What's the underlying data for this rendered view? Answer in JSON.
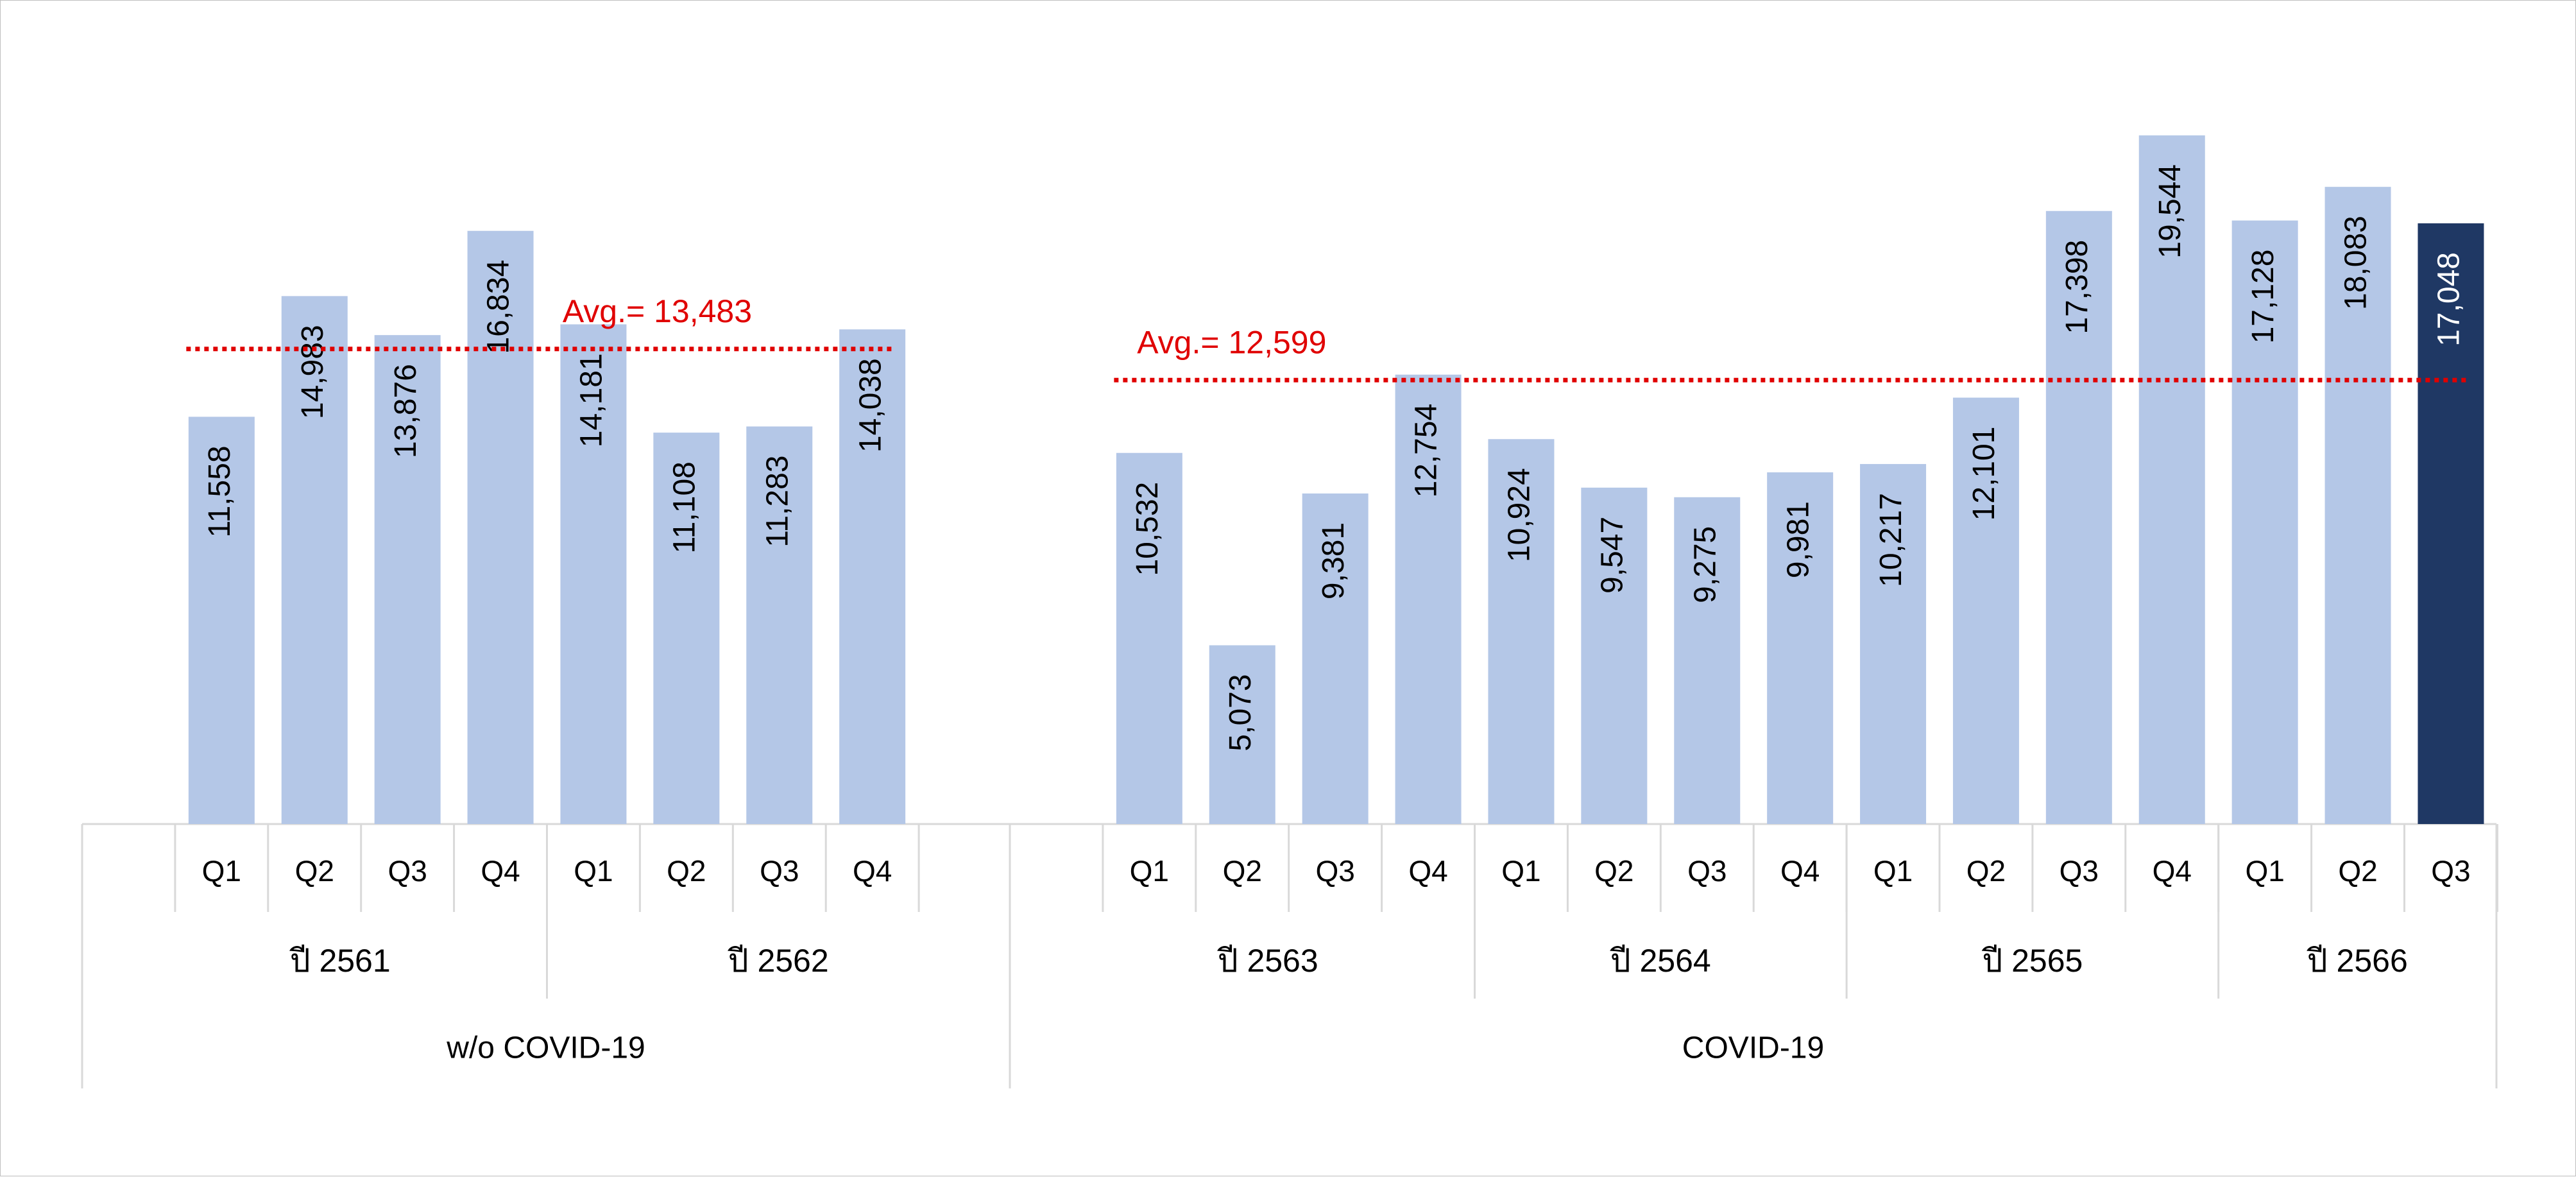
{
  "chart_data": {
    "type": "bar",
    "title": "",
    "xlabel": "",
    "ylabel": "",
    "ylim": [
      0,
      21000
    ],
    "grid": false,
    "legend": "none",
    "colors": {
      "bar": "#b4c7e7",
      "highlight": "#1f3864",
      "avg_line": "#e00000",
      "axis": "#d9d9d9"
    },
    "groups": [
      {
        "label": "w/o COVID-19",
        "years": [
          {
            "label": "ปี 2561",
            "quarters": [
              "Q1",
              "Q2",
              "Q3",
              "Q4"
            ],
            "values": [
              11558,
              14983,
              13876,
              16834
            ]
          },
          {
            "label": "ปี 2562",
            "quarters": [
              "Q1",
              "Q2",
              "Q3",
              "Q4"
            ],
            "values": [
              14181,
              11108,
              11283,
              14038
            ]
          }
        ],
        "avg": {
          "label": "Avg.= 13,483",
          "value": 13483
        }
      },
      {
        "label": "COVID-19",
        "years": [
          {
            "label": "ปี 2563",
            "quarters": [
              "Q1",
              "Q2",
              "Q3",
              "Q4"
            ],
            "values": [
              10532,
              5073,
              9381,
              12754
            ]
          },
          {
            "label": "ปี 2564",
            "quarters": [
              "Q1",
              "Q2",
              "Q3",
              "Q4"
            ],
            "values": [
              10924,
              9547,
              9275,
              9981
            ]
          },
          {
            "label": "ปี 2565",
            "quarters": [
              "Q1",
              "Q2",
              "Q3",
              "Q4"
            ],
            "values": [
              10217,
              12101,
              17398,
              19544
            ]
          },
          {
            "label": "ปี 2566",
            "quarters": [
              "Q1",
              "Q2",
              "Q3"
            ],
            "values": [
              17128,
              18083,
              17048
            ]
          }
        ],
        "avg": {
          "label": "Avg.= 12,599",
          "value": 12599
        }
      }
    ],
    "highlight": {
      "group": 1,
      "year": 3,
      "quarter": 2
    }
  }
}
